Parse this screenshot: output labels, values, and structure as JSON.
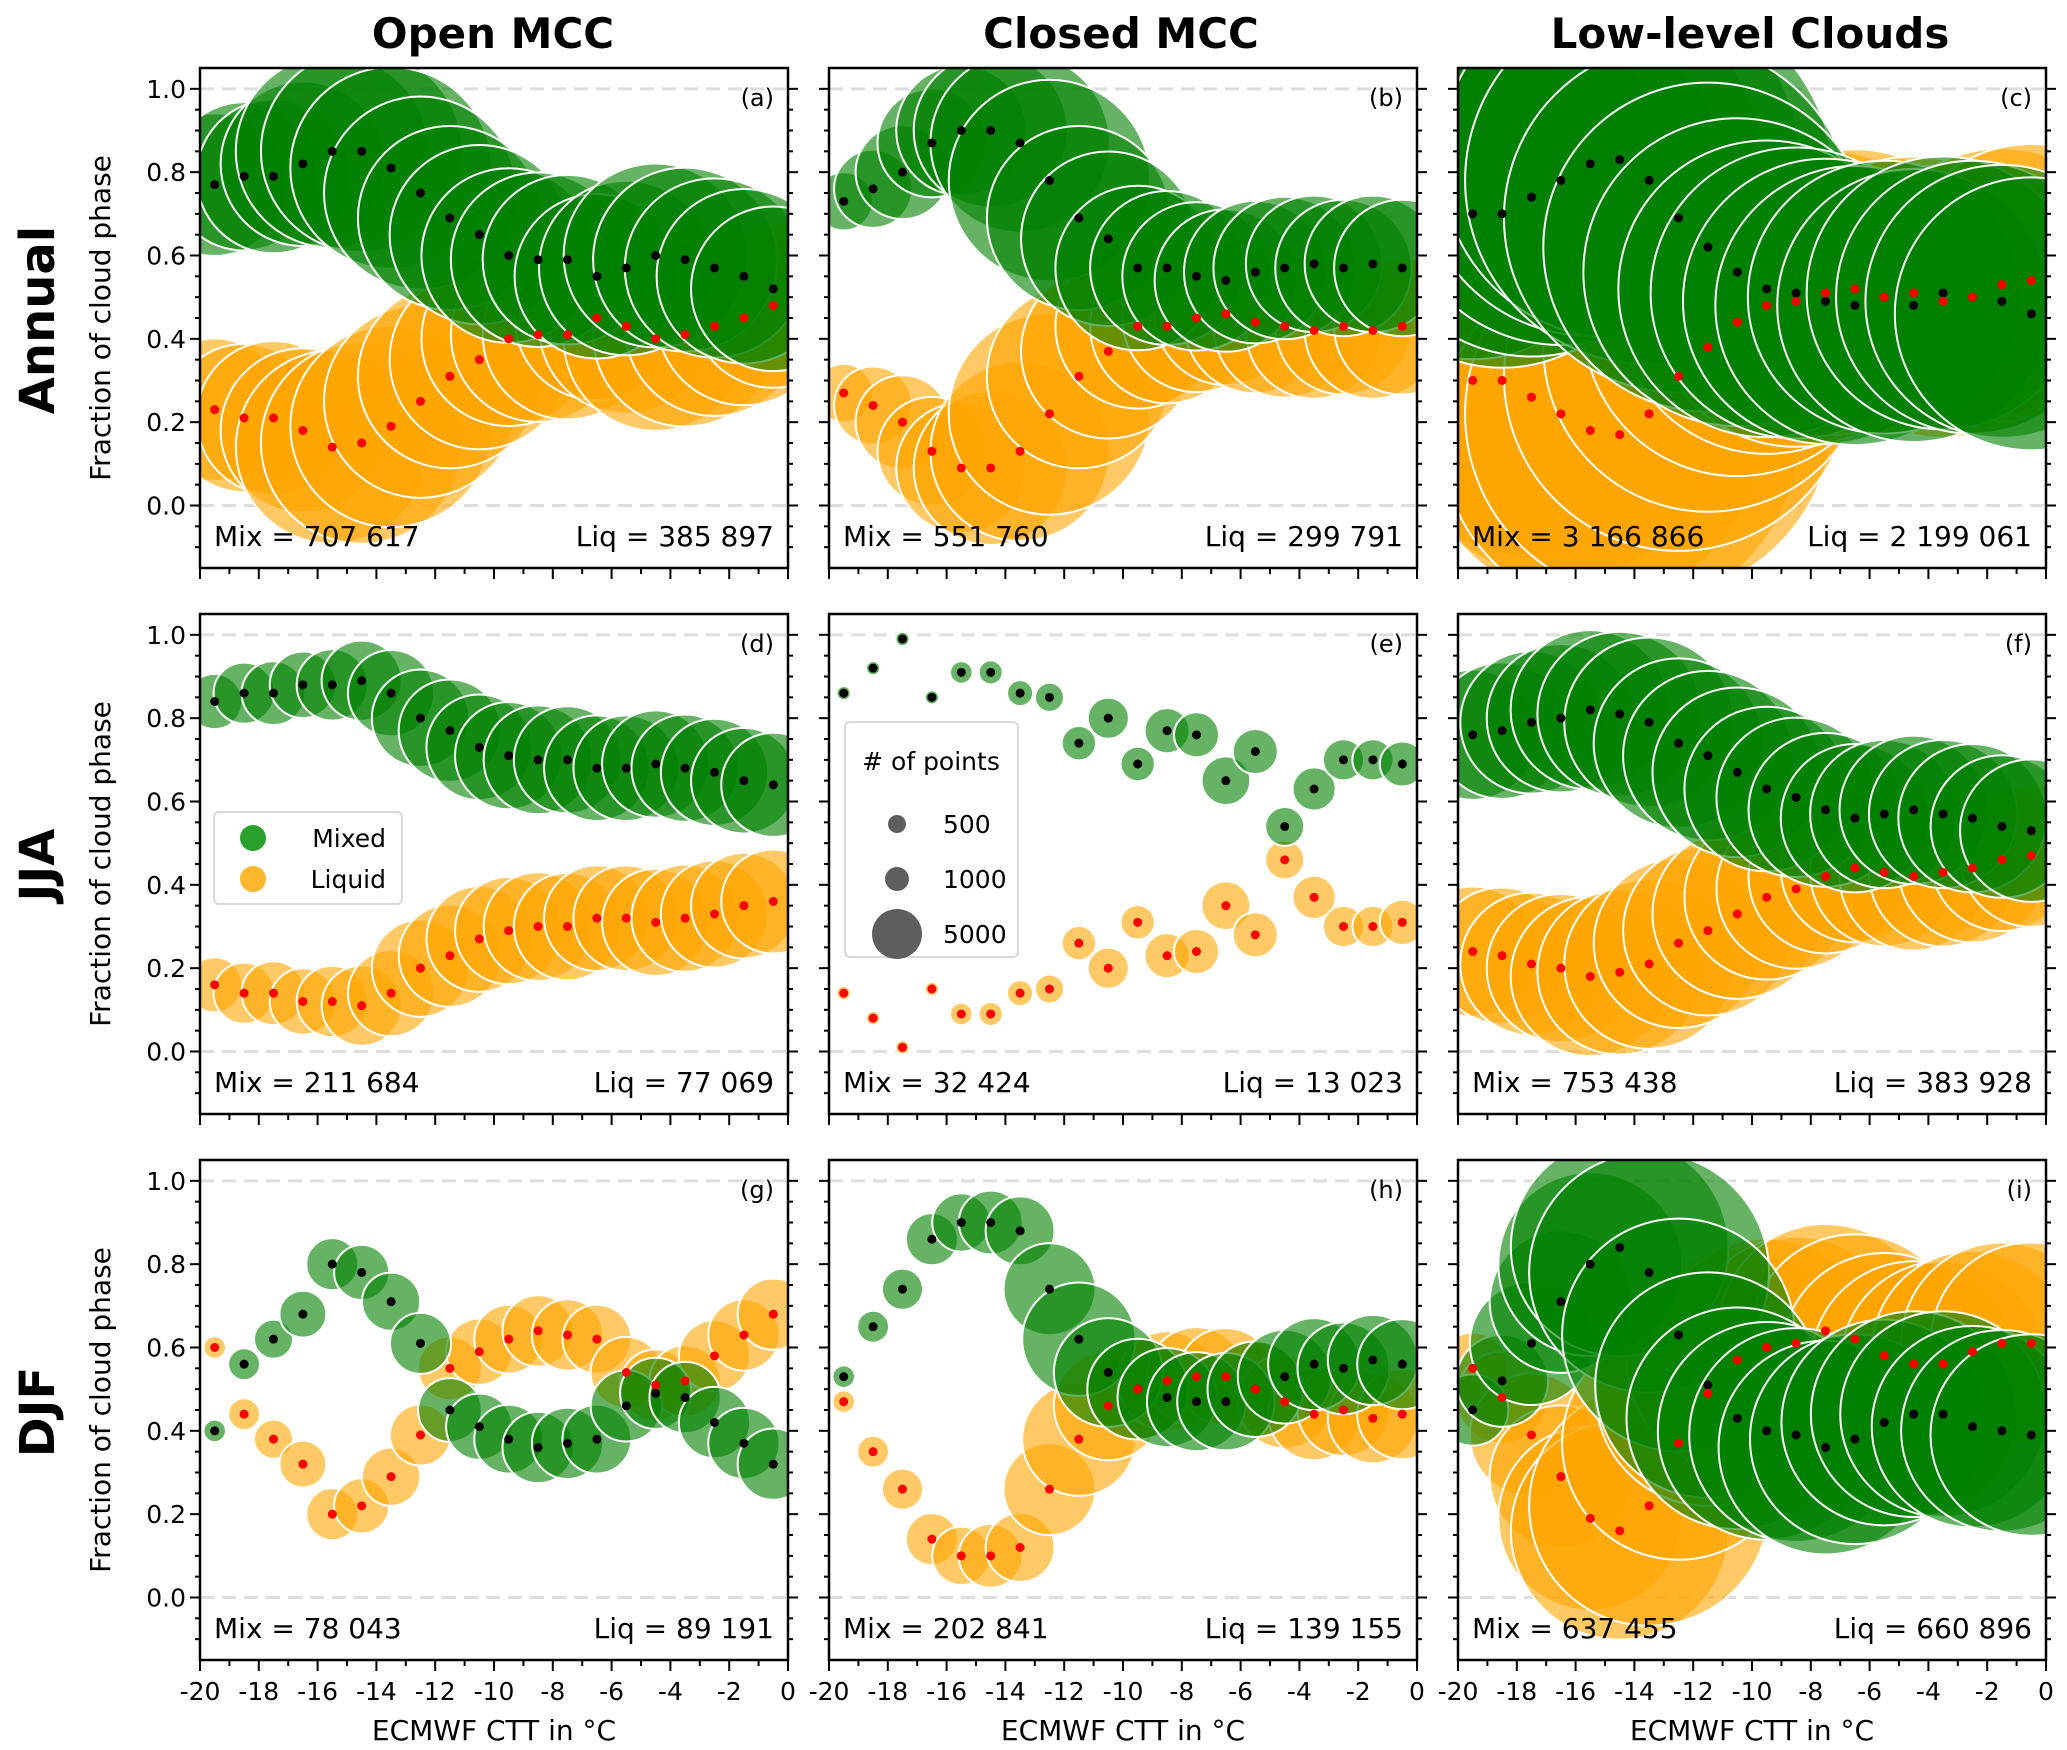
{
  "chart_data": {
    "type": "scatter",
    "subtype": "bubble",
    "column_titles": [
      "Open MCC",
      "Closed MCC",
      "Low-level Clouds"
    ],
    "row_titles": [
      "Annual",
      "JJA",
      "DJF"
    ],
    "xlabel": "ECMWF CTT in °C",
    "ylabel": "Fraction of cloud phase",
    "xlim": [
      -20,
      0
    ],
    "ylim": [
      -0.15,
      1.05
    ],
    "xticks": [
      "-20",
      "-18",
      "-16",
      "-14",
      "-12",
      "-10",
      "-8",
      "-6",
      "-4",
      "-2",
      "0"
    ],
    "yticks": [
      "0.0",
      "0.2",
      "0.4",
      "0.6",
      "0.8",
      "1.0"
    ],
    "hlines": [
      0.0,
      1.0
    ],
    "x": [
      -19.5,
      -18.5,
      -17.5,
      -16.5,
      -15.5,
      -14.5,
      -13.5,
      -12.5,
      -11.5,
      -10.5,
      -9.5,
      -8.5,
      -7.5,
      -6.5,
      -5.5,
      -4.5,
      -3.5,
      -2.5,
      -1.5,
      -0.5
    ],
    "colors": {
      "mixed": "#008000",
      "liquid": "#FFA500",
      "mixed_center": "#000000",
      "liquid_center": "#FF0000"
    },
    "legend_phase": {
      "panel": "d",
      "placement": "center-left",
      "entries": [
        "Mixed",
        "Liquid"
      ]
    },
    "legend_size": {
      "panel": "e",
      "placement": "center-left",
      "title": "# of points",
      "entries": [
        "500",
        "1000",
        "5000"
      ],
      "values": [
        500,
        1000,
        5000
      ]
    },
    "panels": [
      {
        "id": "a",
        "label": "(a)",
        "mix_label": "Mix = 707 617",
        "liq_label": "Liq = 385 897",
        "mixed": [
          0.77,
          0.79,
          0.79,
          0.82,
          0.85,
          0.85,
          0.81,
          0.75,
          0.69,
          0.65,
          0.6,
          0.59,
          0.59,
          0.55,
          0.57,
          0.6,
          0.59,
          0.57,
          0.55,
          0.52
        ],
        "liquid": [
          0.23,
          0.21,
          0.21,
          0.18,
          0.14,
          0.15,
          0.19,
          0.25,
          0.31,
          0.35,
          0.4,
          0.41,
          0.41,
          0.45,
          0.43,
          0.4,
          0.41,
          0.43,
          0.45,
          0.48
        ],
        "counts": [
          6000,
          6500,
          7000,
          8000,
          11000,
          12000,
          12000,
          11000,
          10000,
          9500,
          9000,
          9000,
          8500,
          8000,
          9000,
          10000,
          10000,
          9500,
          9000,
          8000
        ]
      },
      {
        "id": "b",
        "label": "(b)",
        "mix_label": "Mix = 551 760",
        "liq_label": "Liq = 299 791",
        "mixed": [
          0.73,
          0.76,
          0.8,
          0.87,
          0.9,
          0.9,
          0.87,
          0.78,
          0.69,
          0.64,
          0.57,
          0.57,
          0.55,
          0.54,
          0.56,
          0.57,
          0.58,
          0.57,
          0.58,
          0.57
        ],
        "liquid": [
          0.27,
          0.24,
          0.2,
          0.13,
          0.09,
          0.09,
          0.13,
          0.22,
          0.31,
          0.37,
          0.43,
          0.43,
          0.45,
          0.46,
          0.44,
          0.43,
          0.42,
          0.43,
          0.42,
          0.43
        ],
        "counts": [
          1000,
          1800,
          2600,
          3500,
          5000,
          7000,
          9500,
          12000,
          10000,
          9000,
          8000,
          7000,
          6500,
          6000,
          6000,
          6000,
          5500,
          5500,
          5500,
          5500
        ]
      },
      {
        "id": "c",
        "label": "(c)",
        "mix_label": "Mix = 3 166 866",
        "liq_label": "Liq = 2 199 061",
        "mixed": [
          0.7,
          0.7,
          0.74,
          0.78,
          0.82,
          0.83,
          0.78,
          0.69,
          0.62,
          0.56,
          0.52,
          0.51,
          0.49,
          0.48,
          0.5,
          0.48,
          0.51,
          0.5,
          0.49,
          0.46
        ],
        "liquid": [
          0.3,
          0.3,
          0.26,
          0.22,
          0.18,
          0.17,
          0.22,
          0.31,
          0.38,
          0.44,
          0.48,
          0.49,
          0.51,
          0.52,
          0.5,
          0.51,
          0.49,
          0.5,
          0.53,
          0.54
        ],
        "counts": [
          25000,
          28000,
          30000,
          32000,
          35000,
          38000,
          40000,
          36000,
          32000,
          28000,
          26000,
          25000,
          24000,
          23000,
          22000,
          22000,
          22000,
          22000,
          22000,
          22000
        ]
      },
      {
        "id": "d",
        "label": "(d)",
        "mix_label": "Mix = 211 684",
        "liq_label": "Liq = 77 069",
        "mixed": [
          0.84,
          0.86,
          0.86,
          0.88,
          0.88,
          0.89,
          0.86,
          0.8,
          0.77,
          0.73,
          0.71,
          0.7,
          0.7,
          0.68,
          0.68,
          0.69,
          0.68,
          0.67,
          0.65,
          0.64
        ],
        "liquid": [
          0.16,
          0.14,
          0.14,
          0.12,
          0.12,
          0.11,
          0.14,
          0.2,
          0.23,
          0.27,
          0.29,
          0.3,
          0.3,
          0.32,
          0.32,
          0.31,
          0.32,
          0.33,
          0.35,
          0.36
        ],
        "counts": [
          900,
          1100,
          1200,
          1300,
          1500,
          1900,
          2200,
          2800,
          3100,
          3300,
          3400,
          3500,
          3400,
          3300,
          3300,
          3400,
          3400,
          3400,
          3300,
          3200
        ]
      },
      {
        "id": "e",
        "label": "(e)",
        "mix_label": "Mix = 32 424",
        "liq_label": "Liq = 13 023",
        "mixed": [
          0.86,
          0.92,
          0.99,
          0.85,
          0.91,
          0.91,
          0.86,
          0.85,
          0.74,
          0.8,
          0.69,
          0.77,
          0.76,
          0.65,
          0.72,
          0.54,
          0.63,
          0.7,
          0.7,
          0.69
        ],
        "liquid": [
          0.14,
          0.08,
          0.01,
          0.15,
          0.09,
          0.09,
          0.14,
          0.15,
          0.26,
          0.2,
          0.31,
          0.23,
          0.24,
          0.35,
          0.28,
          0.46,
          0.37,
          0.3,
          0.3,
          0.31
        ],
        "counts": [
          60,
          60,
          60,
          60,
          150,
          170,
          200,
          250,
          350,
          500,
          350,
          600,
          600,
          700,
          600,
          450,
          550,
          500,
          500,
          600
        ]
      },
      {
        "id": "f",
        "label": "(f)",
        "mix_label": "Mix = 753 438",
        "liq_label": "Liq = 383 928",
        "mixed": [
          0.76,
          0.77,
          0.79,
          0.8,
          0.82,
          0.81,
          0.79,
          0.74,
          0.71,
          0.67,
          0.63,
          0.61,
          0.58,
          0.56,
          0.57,
          0.58,
          0.57,
          0.56,
          0.54,
          0.53
        ],
        "liquid": [
          0.24,
          0.23,
          0.21,
          0.2,
          0.18,
          0.19,
          0.21,
          0.26,
          0.29,
          0.33,
          0.37,
          0.39,
          0.42,
          0.44,
          0.43,
          0.42,
          0.43,
          0.44,
          0.46,
          0.47
        ],
        "counts": [
          5000,
          5500,
          6000,
          6500,
          7500,
          8000,
          8500,
          8500,
          8500,
          8500,
          8000,
          7500,
          7000,
          6500,
          6500,
          6500,
          6500,
          6500,
          6000,
          6000
        ]
      },
      {
        "id": "g",
        "label": "(g)",
        "mix_label": "Mix = 78 043",
        "liq_label": "Liq = 89 191",
        "mixed": [
          0.4,
          0.56,
          0.62,
          0.68,
          0.8,
          0.78,
          0.71,
          0.61,
          0.45,
          0.41,
          0.38,
          0.36,
          0.37,
          0.38,
          0.46,
          0.49,
          0.48,
          0.42,
          0.37,
          0.32
        ],
        "liquid": [
          0.6,
          0.44,
          0.38,
          0.32,
          0.2,
          0.22,
          0.29,
          0.39,
          0.55,
          0.59,
          0.62,
          0.64,
          0.63,
          0.62,
          0.54,
          0.51,
          0.52,
          0.58,
          0.63,
          0.68
        ],
        "counts": [
          150,
          300,
          450,
          650,
          800,
          900,
          1000,
          1100,
          1200,
          1300,
          1400,
          1500,
          1500,
          1400,
          1500,
          1500,
          1500,
          1500,
          1500,
          1500
        ]
      },
      {
        "id": "h",
        "label": "(h)",
        "mix_label": "Mix = 202 841",
        "liq_label": "Liq = 139 155",
        "mixed": [
          0.53,
          0.65,
          0.74,
          0.86,
          0.9,
          0.9,
          0.88,
          0.74,
          0.62,
          0.54,
          0.5,
          0.48,
          0.47,
          0.47,
          0.5,
          0.53,
          0.56,
          0.55,
          0.57,
          0.56
        ],
        "liquid": [
          0.47,
          0.35,
          0.26,
          0.14,
          0.1,
          0.1,
          0.12,
          0.26,
          0.38,
          0.46,
          0.5,
          0.52,
          0.53,
          0.53,
          0.5,
          0.47,
          0.44,
          0.45,
          0.43,
          0.44
        ],
        "counts": [
          150,
          300,
          500,
          800,
          1000,
          1200,
          1400,
          2500,
          3800,
          3500,
          3000,
          2900,
          2900,
          2800,
          2700,
          2600,
          2500,
          2500,
          2400,
          2400
        ]
      },
      {
        "id": "i",
        "label": "(i)",
        "mix_label": "Mix = 637 455",
        "liq_label": "Liq = 660 896",
        "mixed": [
          0.45,
          0.52,
          0.61,
          0.71,
          0.8,
          0.84,
          0.78,
          0.63,
          0.51,
          0.43,
          0.4,
          0.39,
          0.36,
          0.38,
          0.42,
          0.44,
          0.44,
          0.41,
          0.4,
          0.39
        ],
        "liquid": [
          0.55,
          0.48,
          0.39,
          0.29,
          0.19,
          0.16,
          0.22,
          0.37,
          0.49,
          0.57,
          0.6,
          0.61,
          0.64,
          0.62,
          0.58,
          0.56,
          0.56,
          0.59,
          0.61,
          0.61
        ],
        "counts": [
          1500,
          2500,
          4500,
          6000,
          10000,
          14000,
          17000,
          16000,
          15000,
          14500,
          14000,
          13500,
          13500,
          13000,
          12500,
          12500,
          12500,
          12000,
          12000,
          12000
        ]
      }
    ]
  }
}
